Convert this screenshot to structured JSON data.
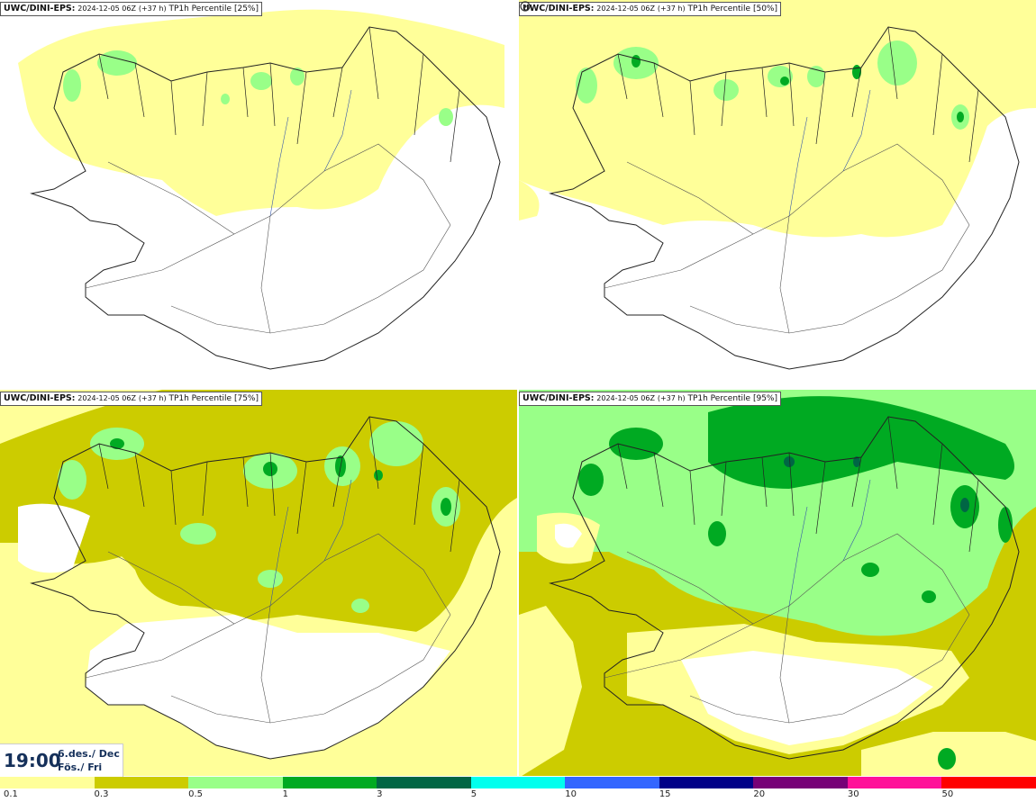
{
  "panels": [
    {
      "source": "UWC/DINI-EPS",
      "run": "2024-12-05 06Z",
      "lead": "(+37 h)",
      "field": "TP1h Percentile",
      "percentile": "[25%]"
    },
    {
      "source": "UWC/DINI-EPS",
      "run": "2024-12-05 06Z",
      "lead": "(+37 h)",
      "field": "TP1h Percentile",
      "percentile": "[50%]"
    },
    {
      "source": "UWC/DINI-EPS",
      "run": "2024-12-05 06Z",
      "lead": "(+37 h)",
      "field": "TP1h Percentile",
      "percentile": "[75%]"
    },
    {
      "source": "UWC/DINI-EPS",
      "run": "2024-12-05 06Z",
      "lead": "(+37 h)",
      "field": "TP1h Percentile",
      "percentile": "[95%]"
    }
  ],
  "valid_time": {
    "time": "19:00",
    "date_line1": "6.des./ Dec",
    "date_line2": "Fös./ Fri"
  },
  "legend": {
    "ticks": [
      "0.1",
      "0.3",
      "0.5",
      "1",
      "3",
      "5",
      "10",
      "15",
      "20",
      "30",
      "50"
    ],
    "colors": [
      "#ffff99",
      "#cccc00",
      "#99ff88",
      "#00aa22",
      "#006644",
      "#00ffee",
      "#3366ff",
      "#000088",
      "#770077",
      "#ff1199",
      "#ff0000"
    ]
  },
  "palette": {
    "yellow": "#ffff99",
    "olive": "#cccc00",
    "lightgreen": "#99ff88",
    "green": "#00aa22",
    "darkgreen": "#006644",
    "coast": "#222222"
  },
  "icons": {
    "corner": "settings-dot-icon"
  }
}
